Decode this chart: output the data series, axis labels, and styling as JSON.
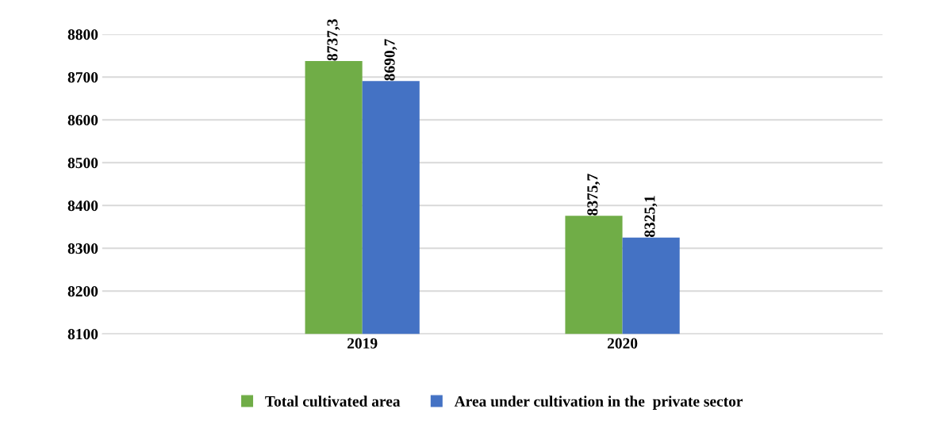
{
  "chart_data": {
    "type": "bar",
    "categories": [
      "2019",
      "2020"
    ],
    "series": [
      {
        "name": "Total cultivated area",
        "color": "#70ad47",
        "values": [
          8737.3,
          8375.7
        ],
        "value_labels": [
          "8737,3",
          "8375,7"
        ]
      },
      {
        "name": "Area under cultivation in the  private sector",
        "color": "#4472c4",
        "values": [
          8690.7,
          8325.1
        ],
        "value_labels": [
          "8690,7",
          "8325,1"
        ]
      }
    ],
    "ylim": [
      8100,
      8800
    ],
    "yticks": [
      8100,
      8200,
      8300,
      8400,
      8500,
      8600,
      8700,
      8800
    ],
    "grid": "y",
    "legend": "bottom"
  }
}
